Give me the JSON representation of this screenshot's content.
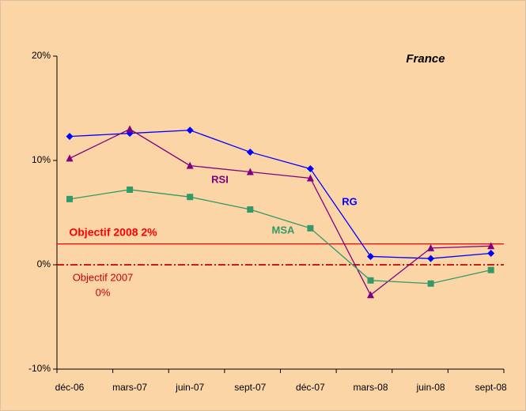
{
  "chart_data": {
    "type": "line",
    "title": "France",
    "categories": [
      "déc-06",
      "mars-07",
      "juin-07",
      "sept-07",
      "déc-07",
      "mars-08",
      "juin-08",
      "sept-08"
    ],
    "series": [
      {
        "name": "RG",
        "color": "#0000ff",
        "marker": "diamond",
        "values": [
          12.3,
          12.6,
          12.9,
          10.8,
          9.2,
          0.8,
          0.6,
          1.1
        ]
      },
      {
        "name": "RSI",
        "color": "#800080",
        "marker": "triangle",
        "values": [
          10.2,
          13.0,
          9.5,
          8.9,
          8.3,
          -2.9,
          1.6,
          1.8
        ]
      },
      {
        "name": "MSA",
        "color": "#339966",
        "marker": "square",
        "values": [
          6.3,
          7.2,
          6.5,
          5.3,
          3.5,
          -1.5,
          -1.8,
          -0.5
        ]
      }
    ],
    "ylim": [
      -10,
      20
    ],
    "yticks": [
      {
        "value": -10,
        "label": "-10%"
      },
      {
        "value": 0,
        "label": "0%"
      },
      {
        "value": 10,
        "label": "10%"
      },
      {
        "value": 20,
        "label": "20%"
      }
    ],
    "grid": false,
    "reference_lines": [
      {
        "label_lines": [
          "Objectif 2008 2%"
        ],
        "value": 2,
        "color": "#ff0000",
        "style": "solid"
      },
      {
        "label_lines": [
          "Objectif 2007",
          "0%"
        ],
        "value": 0,
        "color": "#cc0000",
        "style": "dashdot"
      }
    ]
  }
}
